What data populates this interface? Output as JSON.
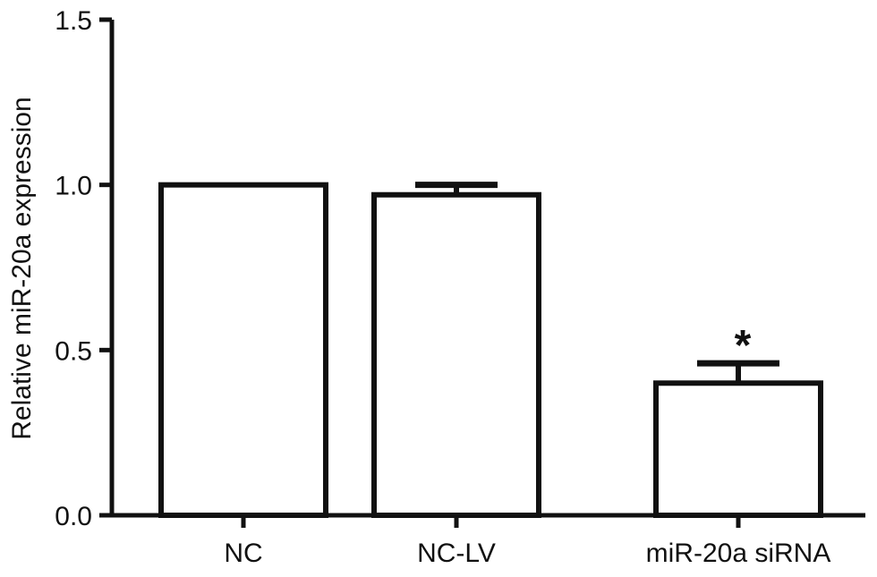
{
  "chart_data": {
    "type": "bar",
    "title": "",
    "xlabel": "",
    "ylabel": "Relative miR-20a expression",
    "categories": [
      "NC",
      "NC-LV",
      "miR-20a siRNA"
    ],
    "values": [
      1.0,
      0.97,
      0.4
    ],
    "errors": [
      0.0,
      0.03,
      0.06
    ],
    "annotations": [
      "",
      "",
      "*"
    ],
    "ylim": [
      0,
      1.5
    ],
    "yticks": [
      "0.0",
      "0.5",
      "1.0",
      "1.5"
    ],
    "ytick_values": [
      0,
      0.5,
      1.0,
      1.5
    ],
    "grid": false,
    "bar_fill": "#ffffff",
    "bar_stroke": "#111111"
  }
}
